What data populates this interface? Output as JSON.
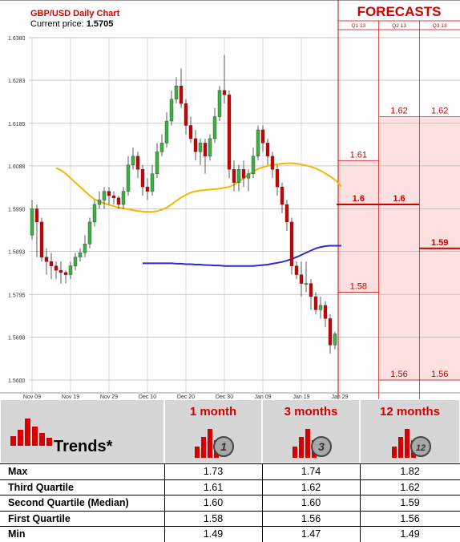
{
  "chart_data": {
    "type": "candlestick",
    "title": "GBP/USD Daily Chart",
    "current_price_label": "Current price:",
    "current_price": "1.5705",
    "ylim": [
      1.56,
      1.638
    ],
    "y_ticks": [
      "1.6380",
      "1.6283",
      "1.6185",
      "1.6088",
      "1.5990",
      "1.5893",
      "1.5795",
      "1.5698",
      "1.5600"
    ],
    "x_tick_labels": [
      "Nov 09",
      "Nov 19",
      "Nov 29",
      "Dec 10",
      "Dec 20",
      "Dec 30",
      "Jan 09",
      "Jan 19",
      "Jan 29"
    ],
    "x_tick_index": [
      0,
      8,
      16,
      24,
      32,
      40,
      48,
      56,
      64
    ],
    "grid": true,
    "candles": [
      [
        1.593,
        1.599,
        1.601,
        1.592
      ],
      [
        1.599,
        1.596,
        1.6,
        1.588
      ],
      [
        1.596,
        1.588,
        1.597,
        1.587
      ],
      [
        1.588,
        1.587,
        1.59,
        1.584
      ],
      [
        1.587,
        1.586,
        1.589,
        1.583
      ],
      [
        1.586,
        1.585,
        1.587,
        1.583
      ],
      [
        1.585,
        1.5845,
        1.587,
        1.582
      ],
      [
        1.5845,
        1.584,
        1.585,
        1.582
      ],
      [
        1.584,
        1.586,
        1.587,
        1.583
      ],
      [
        1.586,
        1.588,
        1.589,
        1.585
      ],
      [
        1.588,
        1.589,
        1.59,
        1.587
      ],
      [
        1.589,
        1.591,
        1.593,
        1.588
      ],
      [
        1.591,
        1.596,
        1.597,
        1.59
      ],
      [
        1.596,
        1.6,
        1.601,
        1.595
      ],
      [
        1.6,
        1.601,
        1.603,
        1.599
      ],
      [
        1.601,
        1.603,
        1.604,
        1.599
      ],
      [
        1.603,
        1.602,
        1.604,
        1.6
      ],
      [
        1.602,
        1.6015,
        1.603,
        1.6
      ],
      [
        1.6015,
        1.6,
        1.602,
        1.599
      ],
      [
        1.6,
        1.603,
        1.604,
        1.599
      ],
      [
        1.603,
        1.609,
        1.611,
        1.602
      ],
      [
        1.609,
        1.611,
        1.613,
        1.608
      ],
      [
        1.611,
        1.608,
        1.612,
        1.606
      ],
      [
        1.608,
        1.604,
        1.609,
        1.602
      ],
      [
        1.604,
        1.603,
        1.606,
        1.601
      ],
      [
        1.603,
        1.607,
        1.609,
        1.602
      ],
      [
        1.607,
        1.612,
        1.614,
        1.606
      ],
      [
        1.612,
        1.614,
        1.616,
        1.611
      ],
      [
        1.614,
        1.619,
        1.621,
        1.613
      ],
      [
        1.619,
        1.624,
        1.626,
        1.618
      ],
      [
        1.624,
        1.627,
        1.629,
        1.623
      ],
      [
        1.627,
        1.623,
        1.631,
        1.622
      ],
      [
        1.623,
        1.618,
        1.624,
        1.616
      ],
      [
        1.618,
        1.615,
        1.62,
        1.614
      ],
      [
        1.615,
        1.612,
        1.617,
        1.61
      ],
      [
        1.612,
        1.614,
        1.615,
        1.609
      ],
      [
        1.614,
        1.611,
        1.615,
        1.607
      ],
      [
        1.611,
        1.615,
        1.616,
        1.61
      ],
      [
        1.615,
        1.62,
        1.622,
        1.614
      ],
      [
        1.62,
        1.626,
        1.627,
        1.619
      ],
      [
        1.626,
        1.625,
        1.634,
        1.623
      ],
      [
        1.625,
        1.608,
        1.626,
        1.606
      ],
      [
        1.608,
        1.605,
        1.61,
        1.603
      ],
      [
        1.605,
        1.608,
        1.609,
        1.603
      ],
      [
        1.608,
        1.606,
        1.61,
        1.604
      ],
      [
        1.606,
        1.607,
        1.608,
        1.603
      ],
      [
        1.607,
        1.611,
        1.613,
        1.606
      ],
      [
        1.611,
        1.617,
        1.618,
        1.61
      ],
      [
        1.617,
        1.614,
        1.618,
        1.612
      ],
      [
        1.614,
        1.611,
        1.615,
        1.609
      ],
      [
        1.611,
        1.608,
        1.612,
        1.606
      ],
      [
        1.608,
        1.604,
        1.609,
        1.602
      ],
      [
        1.604,
        1.6,
        1.605,
        1.598
      ],
      [
        1.6,
        1.596,
        1.601,
        1.594
      ],
      [
        1.596,
        1.586,
        1.597,
        1.584
      ],
      [
        1.586,
        1.584,
        1.587,
        1.583
      ],
      [
        1.584,
        1.582,
        1.587,
        1.579
      ],
      [
        1.582,
        1.582,
        1.587,
        1.58
      ],
      [
        1.582,
        1.579,
        1.583,
        1.576
      ],
      [
        1.579,
        1.576,
        1.58,
        1.575
      ],
      [
        1.576,
        1.577,
        1.579,
        1.574
      ],
      [
        1.577,
        1.574,
        1.578,
        1.572
      ],
      [
        1.574,
        1.568,
        1.575,
        1.566
      ],
      [
        1.568,
        1.5705,
        1.571,
        1.567
      ]
    ],
    "series": [
      {
        "color": "#f5b700",
        "values": [
          1.6083,
          1.6078,
          1.607,
          1.606,
          1.605,
          1.604,
          1.603,
          1.602,
          1.6012,
          1.6007,
          1.6003,
          1.5999,
          1.5996,
          1.5993,
          1.5991,
          1.5989,
          1.5987,
          1.5985,
          1.5984,
          1.5983,
          1.5983,
          1.5985,
          1.5988,
          1.5993,
          1.6,
          1.6008,
          1.6016,
          1.6022,
          1.6027,
          1.603,
          1.6032,
          1.6033,
          1.6034,
          1.6035,
          1.6036,
          1.6038,
          1.604,
          1.6045,
          1.6052,
          1.606,
          1.6068,
          1.6075,
          1.6081,
          1.6085,
          1.6088,
          1.609,
          1.6092,
          1.6093,
          1.6094,
          1.6094,
          1.6093,
          1.6091,
          1.6089,
          1.6086,
          1.6082,
          1.6077,
          1.6071,
          1.6064,
          1.6056
        ]
      },
      {
        "color": "#2b2bd6",
        "values": [
          1.5866,
          1.5866,
          1.5866,
          1.5866,
          1.5866,
          1.5866,
          1.5866,
          1.5865,
          1.5865,
          1.5864,
          1.5864,
          1.5863,
          1.5863,
          1.5862,
          1.5862,
          1.5861,
          1.5861,
          1.586,
          1.586,
          1.586,
          1.586,
          1.586,
          1.586,
          1.586,
          1.5861,
          1.5862,
          1.5863,
          1.5865,
          1.5867,
          1.5869,
          1.5872,
          1.5876,
          1.588,
          1.5885,
          1.589,
          1.5895,
          1.59,
          1.5903,
          1.5905,
          1.5906,
          1.5906
        ]
      }
    ],
    "forecasts": {
      "title": "FORECASTS",
      "columns": [
        "Q1 13",
        "Q2 13",
        "Q3 13"
      ],
      "max": [
        1.61,
        1.62,
        1.62
      ],
      "median": [
        1.6,
        1.6,
        1.59
      ],
      "min": [
        1.58,
        1.56,
        1.56
      ],
      "max_labels": [
        "1.61",
        "1.62",
        "1.62"
      ],
      "median_labels": [
        "1.6",
        "1.6",
        "1.59"
      ],
      "min_labels": [
        "1.58",
        "1.56",
        "1.56"
      ],
      "band_color": "#fde0e0",
      "line_color": "#cc0000"
    }
  },
  "trends": {
    "title": "Trends*",
    "columns": [
      {
        "label": "1 month",
        "badge": "1"
      },
      {
        "label": "3 months",
        "badge": "3"
      },
      {
        "label": "12 months",
        "badge": "12"
      }
    ],
    "rows": [
      {
        "label": "Max",
        "values": [
          "1.73",
          "1.74",
          "1.82"
        ]
      },
      {
        "label": "Third Quartile",
        "values": [
          "1.61",
          "1.62",
          "1.62"
        ]
      },
      {
        "label": "Second Quartile (Median)",
        "values": [
          "1.60",
          "1.60",
          "1.59"
        ]
      },
      {
        "label": "First Quartile",
        "values": [
          "1.58",
          "1.56",
          "1.56"
        ]
      },
      {
        "label": "Min",
        "values": [
          "1.49",
          "1.47",
          "1.49"
        ]
      }
    ]
  },
  "colors": {
    "up": "#3cb043",
    "down": "#cc0000",
    "accent": "#d40000",
    "header_bg": "#d6d6d6"
  }
}
